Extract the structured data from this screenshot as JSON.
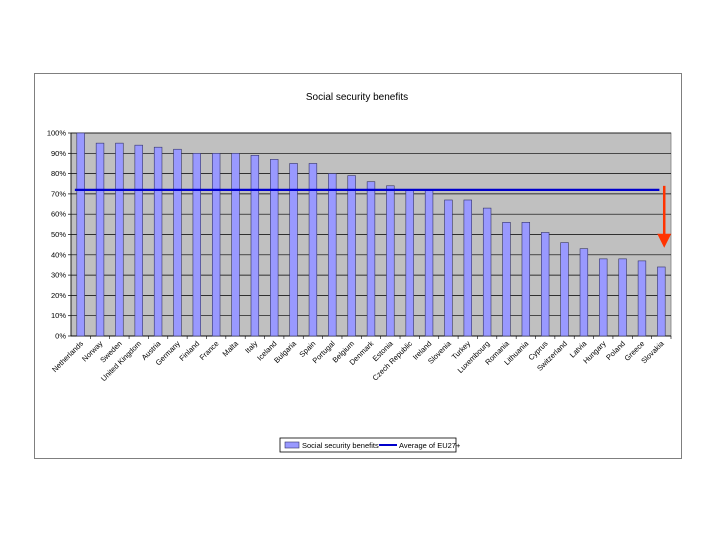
{
  "chart_data": {
    "type": "bar",
    "title": "Social security benefits",
    "categories": [
      "Netherlands",
      "Norway",
      "Sweden",
      "United Kingdom",
      "Austria",
      "Germany",
      "Finland",
      "France",
      "Malta",
      "Italy",
      "Iceland",
      "Bulgaria",
      "Spain",
      "Portugal",
      "Belgium",
      "Denmark",
      "Estonia",
      "Czech Republic",
      "Ireland",
      "Slovenia",
      "Turkey",
      "Luxembourg",
      "Romania",
      "Lithuania",
      "Cyprus",
      "Switzerland",
      "Latvia",
      "Hungary",
      "Poland",
      "Greece",
      "Slovakia"
    ],
    "series": [
      {
        "name": "Social security benefits",
        "kind": "bar",
        "values": [
          100,
          95,
          95,
          94,
          93,
          92,
          90,
          90,
          90,
          89,
          87,
          85,
          85,
          80,
          79,
          76,
          74,
          72,
          72,
          67,
          67,
          63,
          56,
          56,
          51,
          46,
          43,
          38,
          38,
          37,
          34
        ]
      },
      {
        "name": "Average of EU27+",
        "kind": "line",
        "value": 72
      }
    ],
    "ylim": [
      0,
      100
    ],
    "yticks": [
      "0%",
      "10%",
      "20%",
      "30%",
      "40%",
      "50%",
      "60%",
      "70%",
      "80%",
      "90%",
      "100%"
    ],
    "xlabel": "",
    "ylabel": "",
    "grid": true,
    "legend_position": "bottom",
    "legend": [
      "Social security benefits",
      "Average of EU27+"
    ],
    "colors": {
      "bar": "#9999ff",
      "bar_edge": "#333366",
      "average_line": "#0000cc",
      "plot_bg": "#c0c0c0",
      "arrow": "#ff3300"
    },
    "annotation": {
      "shape": "down-arrow",
      "from_value": 72,
      "to_value": 43
    }
  }
}
